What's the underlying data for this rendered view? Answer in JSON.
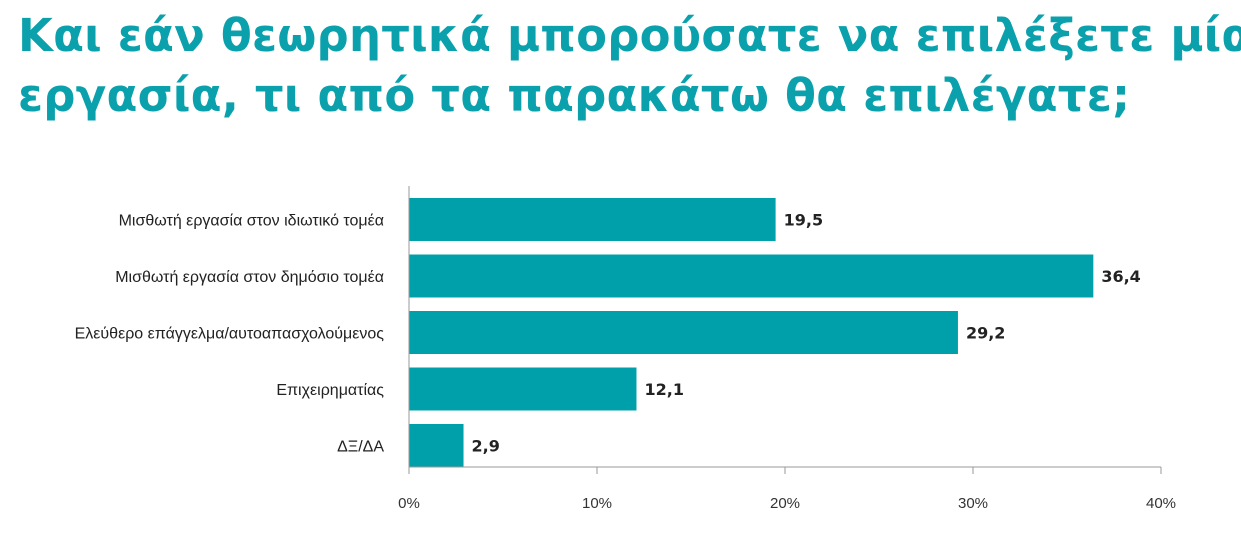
{
  "title_lines": [
    "Και εάν θεωρητικά μπορούσατε να επιλέξετε μία",
    "εργασία, τι από τα παρακάτω θα επιλέγατε;"
  ],
  "colors": {
    "accent": "#0aa1ad",
    "bar": "#00a0aa",
    "axis": "#9a9a9a",
    "text": "#222222"
  },
  "chart_data": {
    "type": "bar",
    "orientation": "horizontal",
    "title": "Και εάν θεωρητικά μπορούσατε να επιλέξετε μία εργασία, τι από τα παρακάτω θα επιλέγατε;",
    "categories": [
      "Μισθωτή εργασία στον ιδιωτικό τομέα",
      "Μισθωτή εργασία στον δημόσιο τομέα",
      "Ελεύθερο επάγγελμα/αυτοαπασχολούμενος",
      "Επιχειρηματίας",
      "ΔΞ/ΔΑ"
    ],
    "values": [
      19.5,
      36.4,
      29.2,
      12.1,
      2.9
    ],
    "value_labels": [
      "19,5",
      "36,4",
      "29,2",
      "12,1",
      "2,9"
    ],
    "xlim": [
      0,
      40
    ],
    "xticks": [
      0,
      10,
      20,
      30,
      40
    ],
    "xtick_labels": [
      "0%",
      "10%",
      "20%",
      "30%",
      "40%"
    ],
    "grid": false,
    "legend": "none"
  }
}
